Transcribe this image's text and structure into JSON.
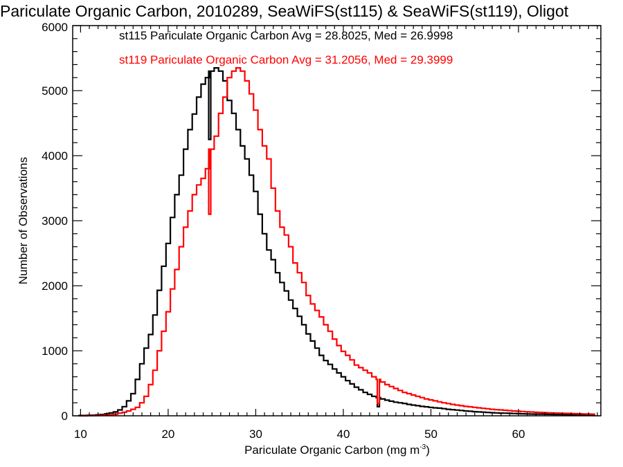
{
  "chart_data": {
    "type": "histogram-step",
    "title": "Pariculate Organic Carbon, 2010289, SeaWiFS(st115) & SeaWiFS(st119), Oligot",
    "xlabel": "Pariculate Organic Carbon (mg m",
    "xlabel_sup": "-3",
    "xlabel_close": ")",
    "ylabel": "Number of Observations",
    "xlim": [
      9.1,
      69.4
    ],
    "ylim": [
      0,
      6000
    ],
    "x_ticks": [
      "10",
      "20",
      "30",
      "40",
      "50",
      "60"
    ],
    "y_ticks": [
      "0",
      "1000",
      "2000",
      "3000",
      "4000",
      "5000",
      "6000"
    ],
    "x_minor_step": 1,
    "y_minor_step": 200,
    "bin_start": 10,
    "bin_width": 0.5,
    "series": [
      {
        "name": "st115",
        "color": "#000000",
        "legend": "st115 Pariculate Organic Carbon Avg = 28.8025, Med = 26.9998",
        "values": [
          5,
          5,
          8,
          10,
          15,
          20,
          30,
          45,
          60,
          90,
          140,
          230,
          340,
          560,
          800,
          1040,
          1250,
          1550,
          1930,
          2300,
          2650,
          3050,
          3400,
          3700,
          4100,
          4400,
          4640,
          4900,
          5100,
          5200,
          5300,
          5350,
          5300,
          5150,
          4850,
          4650,
          4400,
          4150,
          3950,
          3700,
          3450,
          3100,
          2800,
          2550,
          2400,
          2200,
          2050,
          1920,
          1780,
          1650,
          1530,
          1400,
          1260,
          1150,
          1040,
          930,
          850,
          790,
          720,
          660,
          600,
          540,
          490,
          440,
          400,
          360,
          330,
          300,
          280,
          260,
          240,
          225,
          210,
          200,
          190,
          175,
          165,
          155,
          145,
          138,
          130,
          122,
          118,
          110,
          100,
          95,
          88,
          82,
          75,
          70,
          64,
          60,
          56,
          52,
          48,
          45,
          42,
          40,
          38,
          35,
          33,
          31,
          29,
          27,
          26,
          25,
          24,
          22,
          21,
          20,
          19,
          18,
          17,
          16,
          15,
          14,
          13,
          12
        ],
        "dips": [
          {
            "x": 24.75,
            "value": 4250
          },
          {
            "x": 44.0,
            "value": 140
          }
        ]
      },
      {
        "name": "st119",
        "color": "#ff0000",
        "legend": "st119 Pariculate Organic Carbon Avg = 31.2056, Med = 29.3999",
        "values": [
          0,
          0,
          2,
          3,
          5,
          8,
          12,
          18,
          25,
          40,
          55,
          75,
          100,
          130,
          200,
          300,
          480,
          700,
          1000,
          1300,
          1600,
          1950,
          2250,
          2600,
          2900,
          3150,
          3400,
          3550,
          3650,
          3800,
          4100,
          4300,
          4650,
          4900,
          5200,
          5300,
          5350,
          5300,
          5150,
          4950,
          4700,
          4400,
          4150,
          3950,
          3500,
          3150,
          2900,
          2780,
          2600,
          2350,
          2200,
          2050,
          1850,
          1720,
          1620,
          1520,
          1400,
          1300,
          1180,
          1080,
          990,
          930,
          860,
          780,
          740,
          700,
          660,
          600,
          560,
          520,
          480,
          450,
          420,
          390,
          360,
          340,
          320,
          300,
          280,
          260,
          245,
          230,
          215,
          200,
          188,
          176,
          165,
          155,
          145,
          138,
          130,
          122,
          115,
          108,
          100,
          95,
          90,
          85,
          80,
          75,
          70,
          66,
          62,
          58,
          55,
          52,
          49,
          46,
          43,
          41,
          39,
          37,
          35,
          33,
          31,
          29,
          27,
          25
        ],
        "dips": [
          {
            "x": 24.75,
            "value": 3100
          },
          {
            "x": 44.0,
            "value": 190
          }
        ]
      }
    ]
  }
}
